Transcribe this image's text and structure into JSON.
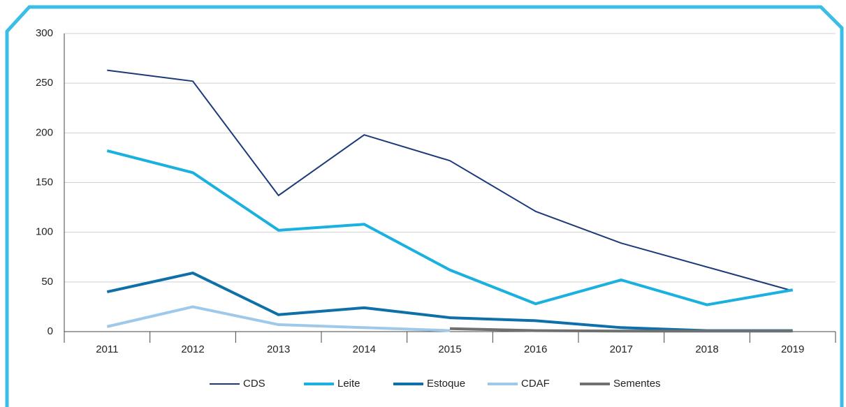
{
  "chart_data": {
    "type": "line",
    "categories": [
      "2011",
      "2012",
      "2013",
      "2014",
      "2015",
      "2016",
      "2017",
      "2018",
      "2019"
    ],
    "series": [
      {
        "name": "CDS",
        "color": "#1c3a7a",
        "values": [
          263,
          252,
          137,
          198,
          172,
          121,
          89,
          65,
          41
        ]
      },
      {
        "name": "Leite",
        "color": "#1ab0e0",
        "values": [
          182,
          160,
          102,
          108,
          62,
          28,
          52,
          27,
          42
        ]
      },
      {
        "name": "Estoque",
        "color": "#0f6fa8",
        "values": [
          40,
          59,
          17,
          24,
          14,
          11,
          4,
          1,
          1
        ]
      },
      {
        "name": "CDAF",
        "color": "#9fc9ea",
        "values": [
          5,
          25,
          7,
          4,
          1,
          null,
          null,
          null,
          null
        ]
      },
      {
        "name": "Sementes",
        "color": "#707070",
        "values": [
          null,
          null,
          null,
          null,
          3,
          1,
          0.5,
          0.5,
          0.5
        ]
      }
    ],
    "ylim": [
      0,
      300
    ],
    "yticks": [
      0,
      50,
      100,
      150,
      200,
      250,
      300
    ],
    "grid": true,
    "legend": "bottom"
  }
}
